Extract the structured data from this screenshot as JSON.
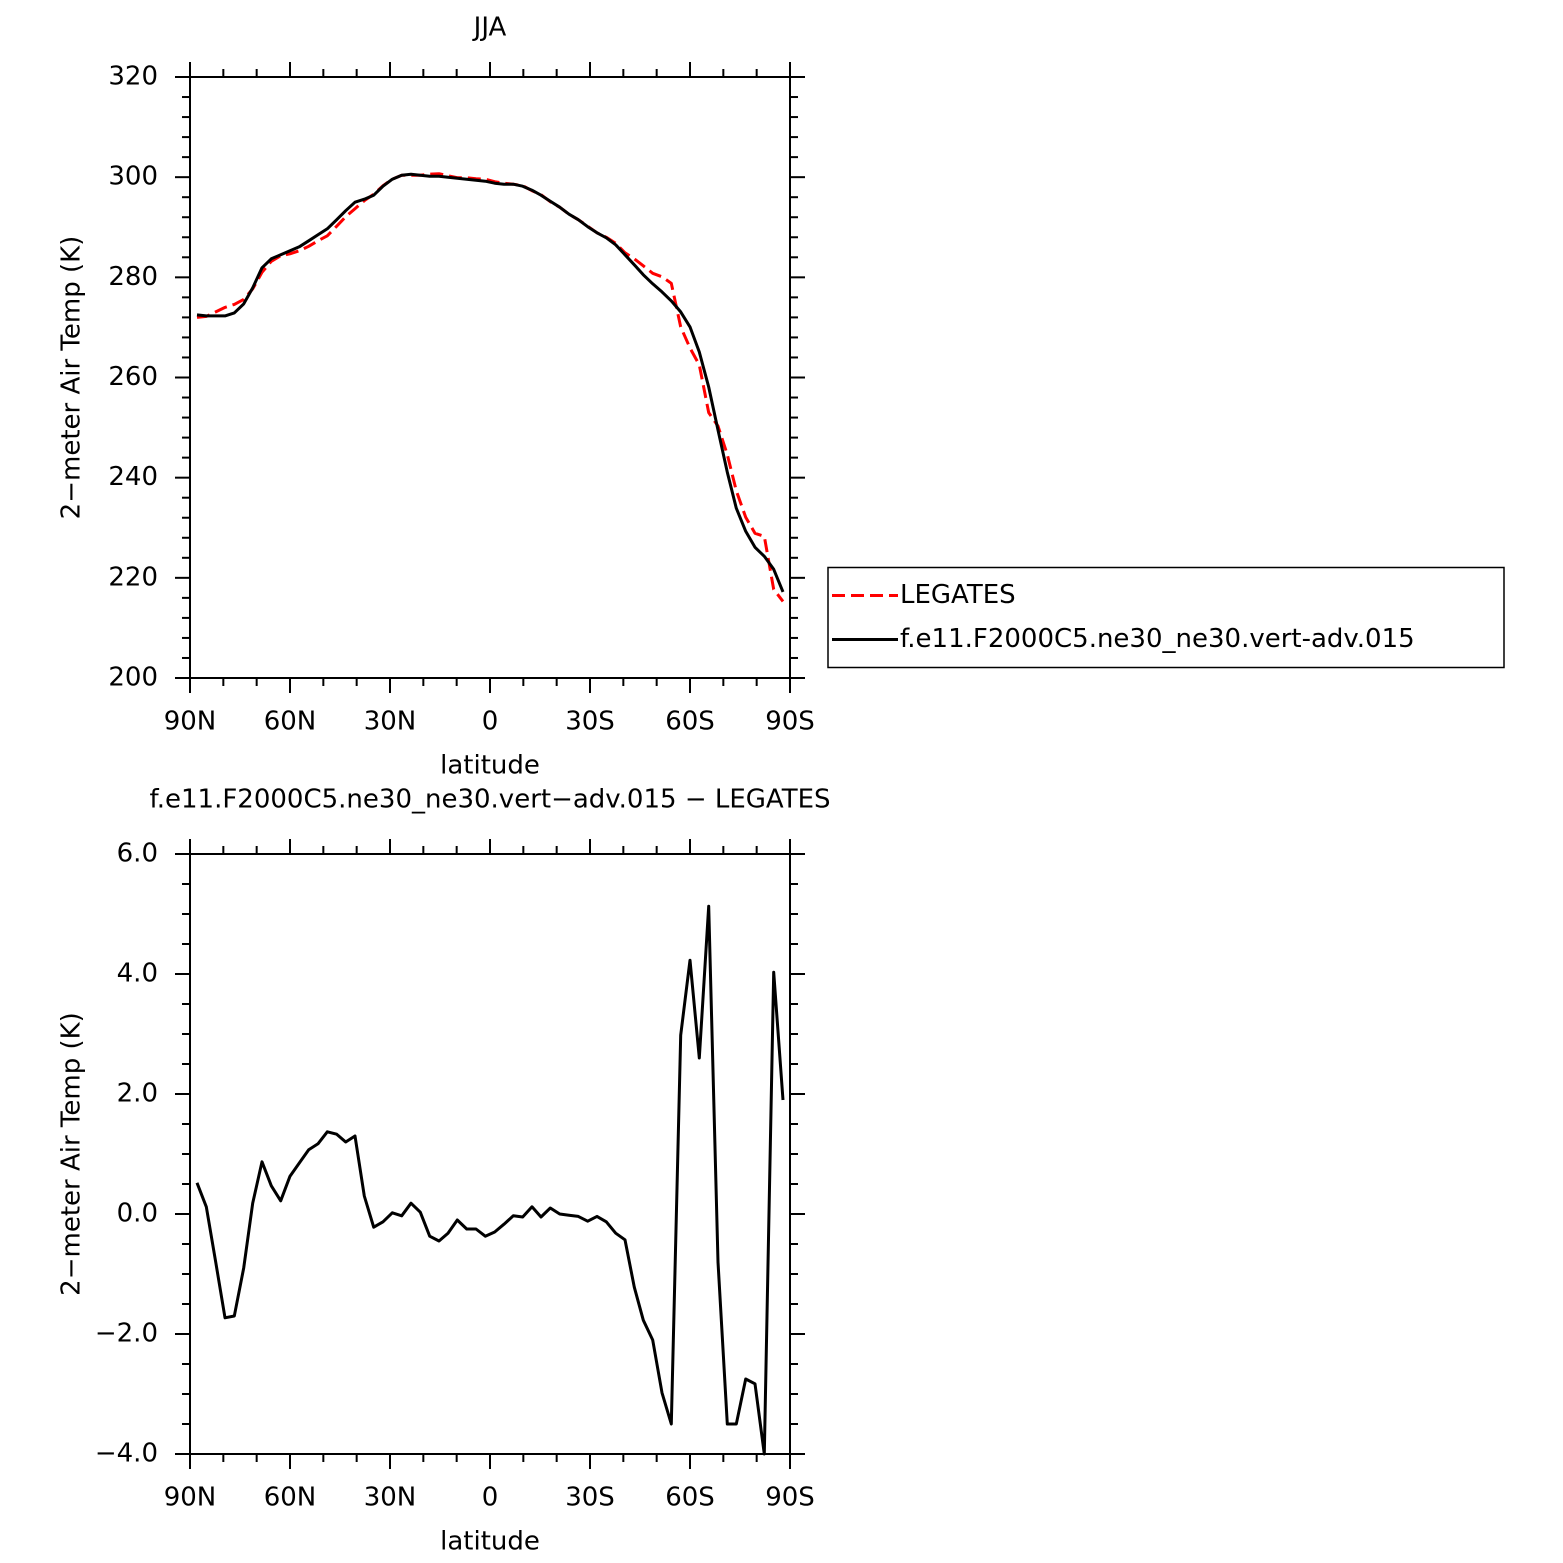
{
  "chart_data": [
    {
      "type": "line",
      "title": "JJA",
      "xlabel": "latitude",
      "ylabel": "2−meter Air Temp (K)",
      "x": [
        87.9,
        85.1,
        82.3,
        79.5,
        76.7,
        73.9,
        71.2,
        68.4,
        65.6,
        62.8,
        60.0,
        57.2,
        54.4,
        51.6,
        48.8,
        46.0,
        43.3,
        40.5,
        37.7,
        34.9,
        32.1,
        29.3,
        26.5,
        23.7,
        20.9,
        18.1,
        15.3,
        12.6,
        9.8,
        7.0,
        4.2,
        1.4,
        -1.4,
        -4.2,
        -7.0,
        -9.8,
        -12.6,
        -15.3,
        -18.1,
        -20.9,
        -23.7,
        -26.5,
        -29.3,
        -32.1,
        -34.9,
        -37.7,
        -40.5,
        -43.3,
        -46.0,
        -48.8,
        -51.6,
        -54.4,
        -57.2,
        -60.0,
        -62.8,
        -65.6,
        -68.4,
        -71.2,
        -73.9,
        -76.7,
        -79.5,
        -82.3,
        -85.1,
        -87.9
      ],
      "series": [
        {
          "name": "LEGATES",
          "color": "#ff0000",
          "dash": true,
          "values": [
            272.0,
            272.2,
            273.1,
            274.0,
            274.6,
            275.6,
            277.7,
            281.0,
            283.2,
            284.3,
            284.7,
            285.3,
            286.2,
            287.3,
            288.3,
            290.2,
            292.1,
            293.7,
            295.3,
            296.6,
            298.3,
            299.6,
            300.4,
            300.4,
            300.4,
            300.6,
            300.7,
            300.3,
            299.9,
            299.9,
            299.7,
            299.6,
            299.1,
            298.8,
            298.6,
            298.3,
            297.3,
            296.5,
            295.1,
            294.0,
            292.6,
            291.5,
            290.2,
            288.9,
            288.0,
            286.8,
            284.9,
            283.7,
            282.3,
            280.8,
            280.1,
            278.8,
            270.1,
            265.9,
            262.5,
            253.0,
            250.3,
            244.6,
            237.4,
            232.1,
            228.9,
            228.3,
            217.7,
            215.3
          ]
        },
        {
          "name": "f.e11.F2000C5.ne30_ne30.vert-adv.015",
          "color": "#000000",
          "dash": false,
          "values": [
            272.5,
            272.3,
            272.3,
            272.3,
            272.9,
            274.7,
            277.9,
            281.9,
            283.7,
            284.5,
            285.3,
            286.1,
            287.3,
            288.5,
            289.7,
            291.5,
            293.3,
            295.0,
            295.6,
            296.4,
            298.2,
            299.6,
            300.4,
            300.6,
            300.4,
            300.2,
            300.2,
            300.0,
            299.8,
            299.6,
            299.4,
            299.2,
            298.8,
            298.6,
            298.6,
            298.2,
            297.4,
            296.4,
            295.2,
            294.0,
            292.6,
            291.5,
            290.1,
            288.9,
            287.9,
            286.5,
            284.5,
            282.5,
            280.5,
            278.7,
            277.1,
            275.3,
            273.1,
            270.1,
            265.1,
            258.1,
            249.5,
            241.1,
            233.9,
            229.3,
            226.1,
            224.3,
            221.7,
            217.2
          ]
        }
      ],
      "xlim": [
        90,
        -90
      ],
      "xticks": [
        {
          "value": 90,
          "label": "90N"
        },
        {
          "value": 60,
          "label": "60N"
        },
        {
          "value": 30,
          "label": "30N"
        },
        0,
        {
          "value": -30,
          "label": "30S"
        },
        {
          "value": -60,
          "label": "60S"
        },
        {
          "value": -90,
          "label": "90S"
        }
      ],
      "xminorticks": [
        80,
        70,
        50,
        40,
        20,
        10,
        -10,
        -20,
        -40,
        -50,
        -70,
        -80
      ],
      "ylim": [
        200,
        320
      ],
      "yticks": [
        200,
        220,
        240,
        260,
        280,
        300,
        320
      ],
      "yminorticks": [
        204,
        208,
        212,
        216,
        224,
        228,
        232,
        236,
        244,
        248,
        252,
        256,
        264,
        268,
        272,
        276,
        284,
        288,
        292,
        296,
        304,
        308,
        312,
        316
      ],
      "legend": "right"
    },
    {
      "type": "line",
      "title": "f.e11.F2000C5.ne30_ne30.vert−adv.015 − LEGATES",
      "xlabel": "latitude",
      "ylabel": "2−meter Air Temp (K)",
      "x": [
        87.9,
        85.1,
        82.3,
        79.5,
        76.7,
        73.9,
        71.2,
        68.4,
        65.6,
        62.8,
        60.0,
        57.2,
        54.4,
        51.6,
        48.8,
        46.0,
        43.3,
        40.5,
        37.7,
        34.9,
        32.1,
        29.3,
        26.5,
        23.7,
        20.9,
        18.1,
        15.3,
        12.6,
        9.8,
        7.0,
        4.2,
        1.4,
        -1.4,
        -4.2,
        -7.0,
        -9.8,
        -12.6,
        -15.3,
        -18.1,
        -20.9,
        -23.7,
        -26.5,
        -29.3,
        -32.1,
        -34.9,
        -37.7,
        -40.5,
        -43.3,
        -46.0,
        -48.8,
        -51.6,
        -54.4,
        -57.2,
        -60.0,
        -62.8,
        -65.6,
        -68.4,
        -71.2,
        -73.9,
        -76.7,
        -79.5,
        -82.3,
        -85.1,
        -87.9
      ],
      "series": [
        {
          "color": "#000000",
          "dash": false,
          "values": [
            0.52,
            0.12,
            -0.8,
            -1.73,
            -1.7,
            -0.9,
            0.18,
            0.87,
            0.47,
            0.22,
            0.63,
            0.85,
            1.07,
            1.17,
            1.37,
            1.33,
            1.2,
            1.3,
            0.3,
            -0.22,
            -0.13,
            0.02,
            -0.03,
            0.18,
            0.03,
            -0.37,
            -0.45,
            -0.32,
            -0.1,
            -0.25,
            -0.25,
            -0.37,
            -0.3,
            -0.17,
            -0.03,
            -0.05,
            0.12,
            -0.05,
            0.1,
            0.0,
            -0.02,
            -0.04,
            -0.12,
            -0.04,
            -0.13,
            -0.32,
            -0.43,
            -1.22,
            -1.77,
            -2.1,
            -2.98,
            -3.5,
            2.98,
            4.23,
            2.6,
            5.13,
            -0.8,
            -3.5,
            -3.5,
            -2.75,
            -2.83,
            -4.0,
            4.03,
            1.9
          ]
        }
      ],
      "xlim": [
        90,
        -90
      ],
      "xticks": [
        {
          "value": 90,
          "label": "90N"
        },
        {
          "value": 60,
          "label": "60N"
        },
        {
          "value": 30,
          "label": "30N"
        },
        0,
        {
          "value": -30,
          "label": "30S"
        },
        {
          "value": -60,
          "label": "60S"
        },
        {
          "value": -90,
          "label": "90S"
        }
      ],
      "xminorticks": [
        80,
        70,
        50,
        40,
        20,
        10,
        -10,
        -20,
        -40,
        -50,
        -70,
        -80
      ],
      "ylim": [
        -4,
        6
      ],
      "yticks": [
        {
          "value": -4,
          "label": "−4.0"
        },
        {
          "value": -2,
          "label": "−2.0"
        },
        {
          "value": 0,
          "label": "0.0"
        },
        {
          "value": 2,
          "label": "2.0"
        },
        {
          "value": 4,
          "label": "4.0"
        },
        {
          "value": 6,
          "label": "6.0"
        }
      ],
      "yminorticks": [
        -3.5,
        -3,
        -2.5,
        -1.5,
        -1,
        -0.5,
        0.5,
        1,
        1.5,
        2.5,
        3,
        3.5,
        4.5,
        5,
        5.5
      ]
    }
  ]
}
